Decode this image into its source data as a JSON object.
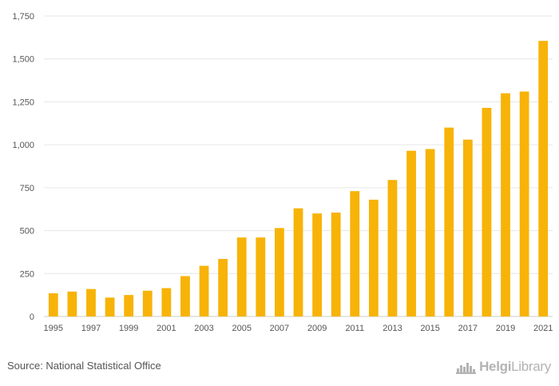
{
  "chart_data": {
    "type": "bar",
    "title": "",
    "xlabel": "",
    "ylabel": "",
    "ylim": [
      0,
      1750
    ],
    "yticks": [
      0,
      250,
      500,
      750,
      1000,
      1250,
      1500,
      1750
    ],
    "ytick_labels": [
      "0",
      "250",
      "500",
      "750",
      "1,000",
      "1,250",
      "1,500",
      "1,750"
    ],
    "categories": [
      "1995",
      "1996",
      "1997",
      "1998",
      "1999",
      "2000",
      "2001",
      "2002",
      "2003",
      "2004",
      "2005",
      "2006",
      "2007",
      "2008",
      "2009",
      "2010",
      "2011",
      "2012",
      "2013",
      "2014",
      "2015",
      "2016",
      "2017",
      "2018",
      "2019",
      "2020",
      "2021"
    ],
    "xtick_labels": [
      "1995",
      "",
      "1997",
      "",
      "1999",
      "",
      "2001",
      "",
      "2003",
      "",
      "2005",
      "",
      "2007",
      "",
      "2009",
      "",
      "2011",
      "",
      "2013",
      "",
      "2015",
      "",
      "2017",
      "",
      "2019",
      "",
      "2021"
    ],
    "values": [
      135,
      145,
      160,
      110,
      125,
      150,
      165,
      235,
      295,
      335,
      460,
      460,
      515,
      630,
      600,
      605,
      730,
      680,
      795,
      965,
      975,
      1100,
      1030,
      1215,
      1300,
      1310,
      1605
    ],
    "bar_color": "#f7b307",
    "grid": true
  },
  "footer": {
    "source": "Source: National Statistical Office",
    "brand_bold": "Helgi",
    "brand_light": "Library",
    "brand_icon": "helgi-library-logo-icon"
  }
}
